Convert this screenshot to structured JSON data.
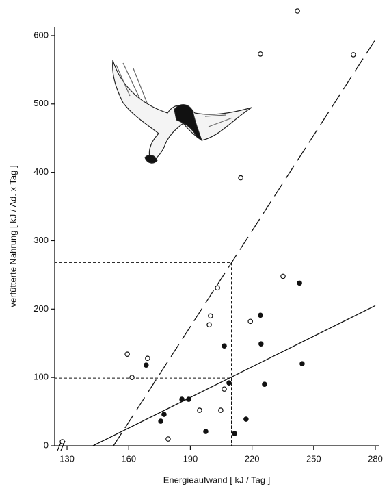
{
  "chart_data": {
    "type": "scatter",
    "x_label": "Energieaufwand [ kJ / Tag ]",
    "y_label": "verfütterte Nahrung [ kJ / Ad. x Tag ]",
    "xlim": [
      124,
      282
    ],
    "ylim": [
      0,
      640
    ],
    "xticks": [
      130,
      160,
      190,
      220,
      250,
      280
    ],
    "yticks": [
      0,
      100,
      200,
      300,
      400,
      500,
      600
    ],
    "series": [
      {
        "marker": "open",
        "color": "#111111",
        "x": [
          127.7,
          159.3,
          161.6,
          169.2,
          179.2,
          194.5,
          199.8,
          199.2,
          203.2,
          204.8,
          206.5,
          214.5,
          219.2,
          224.1,
          235.1,
          242.1,
          269.3
        ],
        "values": [
          6,
          134,
          100,
          128,
          10,
          52,
          190,
          177,
          231,
          52,
          83,
          392,
          182,
          573,
          248,
          636,
          572
        ]
      },
      {
        "marker": "filled",
        "color": "#111111",
        "x": [
          168.5,
          175.6,
          177.2,
          185.9,
          189.2,
          197.5,
          206.5,
          208.8,
          211.5,
          217.1,
          224.1,
          224.4,
          226.1,
          243.1,
          244.4
        ],
        "values": [
          118,
          36,
          46,
          68,
          68,
          21,
          146,
          92,
          18,
          39,
          191,
          149,
          90,
          238,
          120
        ]
      }
    ],
    "lines": [
      {
        "style": "solid",
        "x": [
          142.6,
          280
        ],
        "values": [
          0,
          205
        ]
      },
      {
        "style": "dashed",
        "x": [
          152.6,
          280
        ],
        "values": [
          0,
          594
        ]
      }
    ],
    "guides": [
      {
        "x": 210,
        "y": 268
      },
      {
        "x": 210,
        "y": 99
      }
    ]
  }
}
